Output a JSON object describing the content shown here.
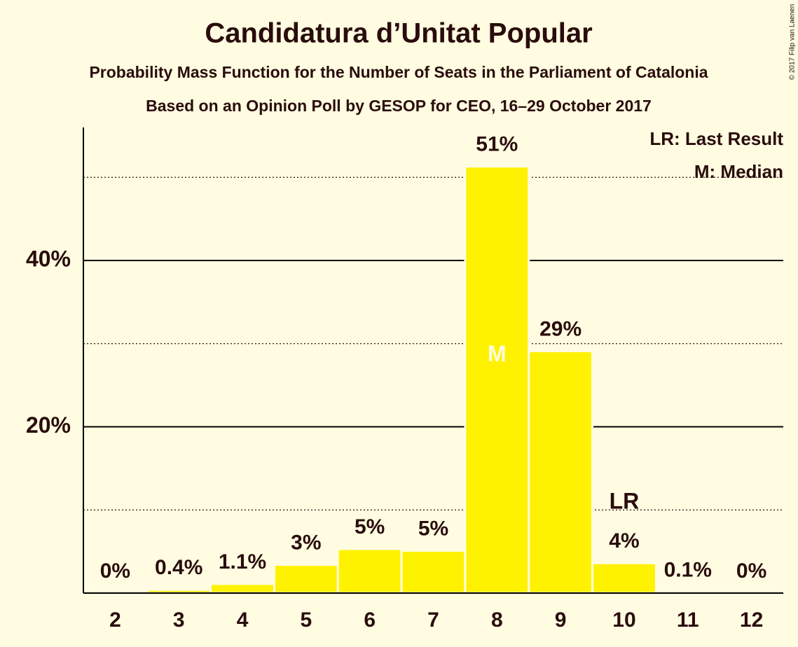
{
  "chart_data": {
    "type": "bar",
    "title": "Candidatura d’Unitat Popular",
    "subtitle": "Probability Mass Function for the Number of Seats in the Parliament of Catalonia",
    "subtitle2": "Based on an Opinion Poll by GESOP for CEO, 16–29 October 2017",
    "copyright": "© 2017 Filip van Laenen",
    "categories": [
      "2",
      "3",
      "4",
      "5",
      "6",
      "7",
      "8",
      "9",
      "10",
      "11",
      "12"
    ],
    "values": [
      0,
      0.4,
      1.1,
      3.4,
      5.3,
      5.1,
      51.3,
      29.1,
      3.6,
      0.1,
      0
    ],
    "value_labels": [
      "0%",
      "0.4%",
      "1.1%",
      "3%",
      "5%",
      "5%",
      "51%",
      "29%",
      "4%",
      "0.1%",
      "0%"
    ],
    "color": "#fff200",
    "ylim": [
      0,
      56
    ],
    "yticks": [
      {
        "value": 20,
        "label": "20%"
      },
      {
        "value": 40,
        "label": "40%"
      }
    ],
    "minor_gridlines": [
      10,
      30,
      50
    ],
    "grid": true,
    "annotations": [
      {
        "text": "M",
        "category": "8"
      },
      {
        "text": "LR",
        "category": "10"
      }
    ],
    "legend": [
      "LR: Last Result",
      "M: Median"
    ],
    "legend_corner": "top-right"
  }
}
